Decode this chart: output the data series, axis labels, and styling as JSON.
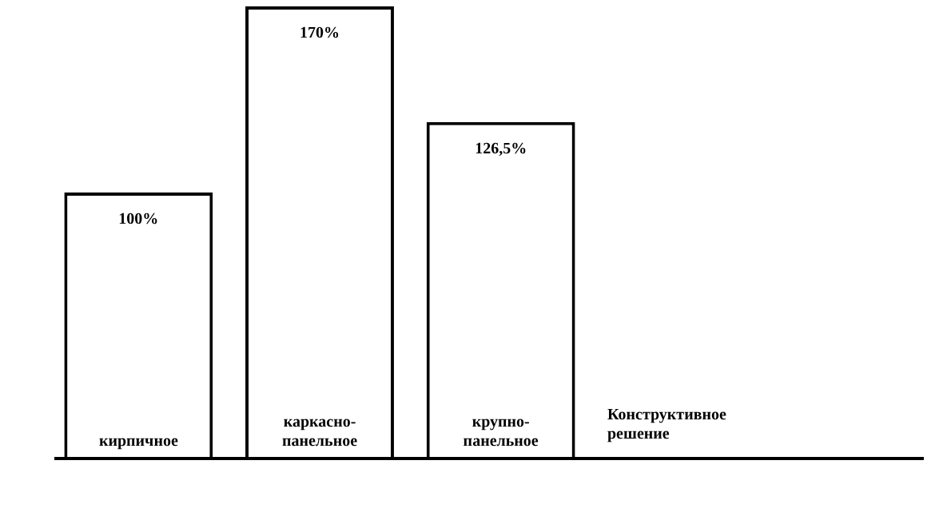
{
  "chart_data": {
    "type": "bar",
    "xlabel": "Конструктивное решение",
    "categories": [
      "кирпичное",
      "каркасно-панельное",
      "крупно-панельное"
    ],
    "values": [
      100,
      170,
      126.5
    ],
    "value_labels": [
      "100%",
      "170%",
      "126,5%"
    ],
    "color": "#ffffff"
  }
}
